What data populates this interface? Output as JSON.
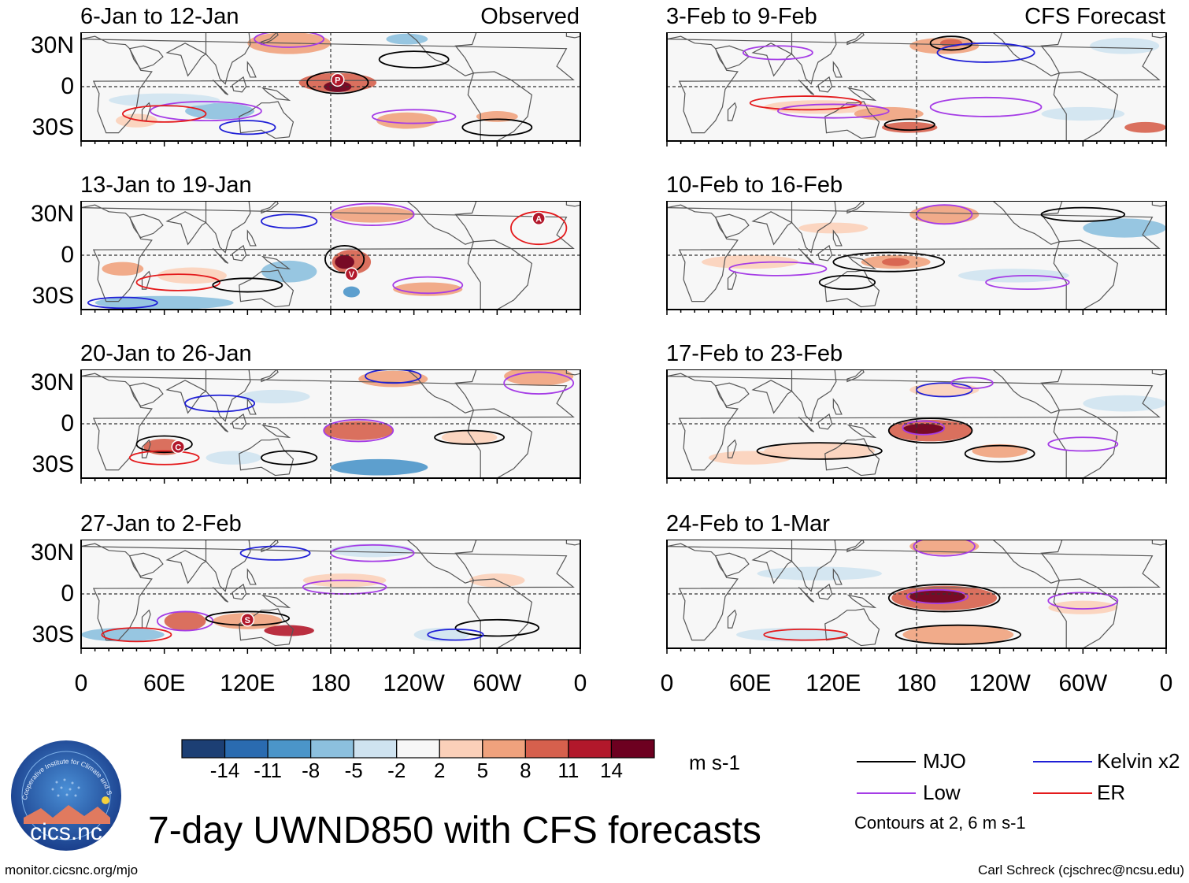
{
  "main_title": "7-day UWND850 with CFS forecasts",
  "header": {
    "observed_label": "Observed",
    "forecast_label": "CFS Forecast"
  },
  "lat_labels": [
    "30N",
    "0",
    "30S"
  ],
  "lon_labels": [
    "0",
    "60E",
    "120E",
    "180",
    "120W",
    "60W",
    "0"
  ],
  "panels_left": [
    {
      "period": "6-Jan to 12-Jan"
    },
    {
      "period": "13-Jan to 19-Jan"
    },
    {
      "period": "20-Jan to 26-Jan"
    },
    {
      "period": "27-Jan to 2-Feb"
    }
  ],
  "panels_right": [
    {
      "period": "3-Feb to 9-Feb"
    },
    {
      "period": "10-Feb to 16-Feb"
    },
    {
      "period": "17-Feb to 23-Feb"
    },
    {
      "period": "24-Feb to 1-Mar"
    }
  ],
  "event_markers": [
    {
      "panel": 0,
      "letter": "P",
      "lon": 185,
      "lat": 5
    },
    {
      "panel": 1,
      "letter": "A",
      "lon": 330,
      "lat": 27
    },
    {
      "panel": 1,
      "letter": "V",
      "lon": 195,
      "lat": -14
    },
    {
      "panel": 2,
      "letter": "C",
      "lon": 70,
      "lat": -17
    },
    {
      "panel": 3,
      "letter": "S",
      "lon": 120,
      "lat": -19
    }
  ],
  "colorbar": {
    "units": "m s-1",
    "labels": [
      "-14",
      "-11",
      "-8",
      "-5",
      "-2",
      "2",
      "5",
      "8",
      "11",
      "14"
    ],
    "colors": [
      "#1c3f74",
      "#2a6bb0",
      "#4b95c9",
      "#8cc0de",
      "#cfe3f0",
      "#f7f7f7",
      "#fbd0b9",
      "#f0a27d",
      "#d6604d",
      "#b2182b",
      "#6d0020"
    ]
  },
  "legend": [
    {
      "label": "MJO",
      "color": "#000000"
    },
    {
      "label": "Kelvin x2",
      "color": "#1f1fd6"
    },
    {
      "label": "Low",
      "color": "#a53ce6"
    },
    {
      "label": "ER",
      "color": "#e41a1c"
    }
  ],
  "contour_note": "Contours at 2, 6 m s-1",
  "logo_text": "cics.nc",
  "logo_ring_text": "Cooperative Institute for Climate and Satellites",
  "url": "monitor.cicsnc.org/mjo",
  "credit": "Carl Schreck (cjschrec@ncsu.edu)"
}
